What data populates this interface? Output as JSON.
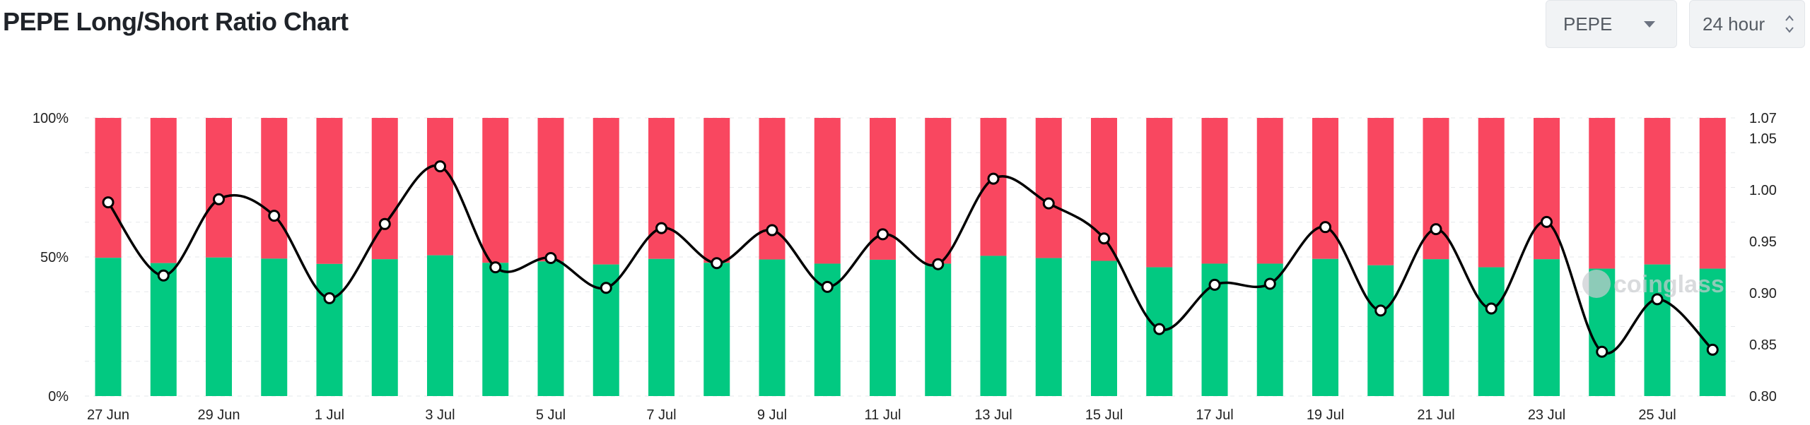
{
  "header": {
    "title": "PEPE Long/Short Ratio Chart",
    "symbol_select": "PEPE",
    "period_select": "24 hour"
  },
  "watermark": "coinglass",
  "colors": {
    "long": "#02c981",
    "short": "#f94760",
    "ratio_line": "#000000",
    "grid": "#e6e8eb"
  },
  "icons": [
    "caret-down-icon",
    "updown-chevron-icon",
    "coinglass-logo-icon"
  ],
  "chart_data": {
    "type": "bar",
    "stacked": true,
    "categories": [
      "27 Jun",
      "28 Jun",
      "29 Jun",
      "30 Jun",
      "1 Jul",
      "2 Jul",
      "3 Jul",
      "4 Jul",
      "5 Jul",
      "6 Jul",
      "7 Jul",
      "8 Jul",
      "9 Jul",
      "10 Jul",
      "11 Jul",
      "12 Jul",
      "13 Jul",
      "14 Jul",
      "15 Jul",
      "16 Jul",
      "17 Jul",
      "18 Jul",
      "19 Jul",
      "20 Jul",
      "21 Jul",
      "22 Jul",
      "23 Jul",
      "24 Jul",
      "25 Jul",
      "26 Jul"
    ],
    "x_tick_labels": [
      "27 Jun",
      "29 Jun",
      "1 Jul",
      "3 Jul",
      "5 Jul",
      "7 Jul",
      "9 Jul",
      "11 Jul",
      "13 Jul",
      "15 Jul",
      "17 Jul",
      "19 Jul",
      "21 Jul",
      "23 Jul",
      "25 Jul"
    ],
    "series": [
      {
        "name": "Longs",
        "axis": "left",
        "values": [
          49.7,
          47.8,
          49.8,
          49.4,
          47.5,
          49.2,
          50.6,
          47.9,
          48.4,
          47.3,
          49.3,
          47.9,
          49.1,
          47.6,
          49.0,
          47.6,
          50.4,
          49.6,
          48.6,
          46.3,
          47.6,
          47.6,
          49.3,
          47.0,
          49.2,
          46.3,
          49.2,
          45.8,
          47.3,
          45.8
        ]
      },
      {
        "name": "Shorts",
        "axis": "left",
        "values": [
          50.3,
          52.2,
          50.2,
          50.6,
          52.5,
          50.8,
          49.4,
          52.1,
          51.6,
          52.7,
          50.7,
          52.1,
          50.9,
          52.4,
          51.0,
          52.4,
          49.6,
          50.4,
          51.4,
          53.7,
          52.4,
          52.4,
          50.7,
          53.0,
          50.8,
          53.7,
          50.8,
          54.2,
          52.7,
          54.2
        ]
      },
      {
        "name": "Long/Short Ratio",
        "type": "line",
        "axis": "right",
        "values": [
          0.988,
          0.917,
          0.991,
          0.975,
          0.895,
          0.967,
          1.023,
          0.925,
          0.934,
          0.905,
          0.963,
          0.929,
          0.961,
          0.906,
          0.957,
          0.928,
          1.011,
          0.987,
          0.953,
          0.865,
          0.908,
          0.909,
          0.964,
          0.883,
          0.962,
          0.885,
          0.969,
          0.843,
          0.894,
          0.845
        ]
      }
    ],
    "y_left": {
      "ticks": [
        "0%",
        "50%",
        "100%"
      ],
      "range": [
        0,
        100
      ]
    },
    "y_right": {
      "ticks": [
        "0.80",
        "0.85",
        "0.90",
        "0.95",
        "1.00",
        "1.05",
        "1.07"
      ],
      "range": [
        0.8,
        1.07
      ]
    },
    "grid": true
  }
}
